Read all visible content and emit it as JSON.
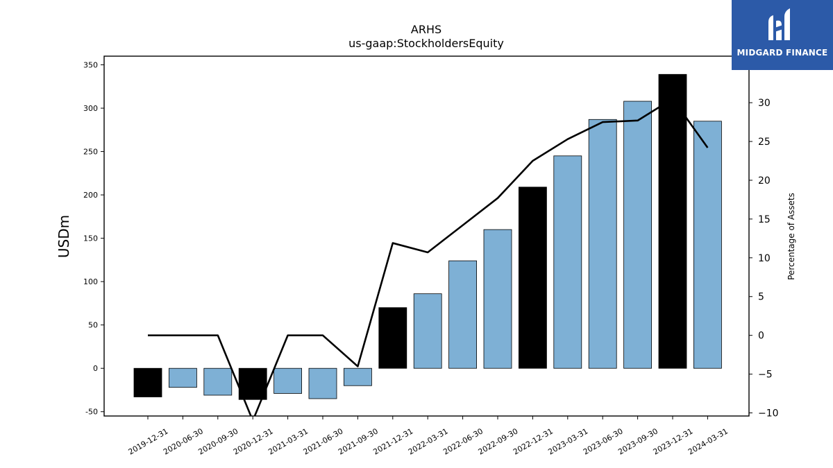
{
  "chart_data": {
    "type": "bar",
    "title": "ARHS",
    "subtitle": "us-gaap:StockholdersEquity",
    "ylabel": "USDm",
    "y2label": "Percentage of Assets",
    "ylim": [
      -55,
      360
    ],
    "y2lim": [
      -10.4,
      36.0
    ],
    "yticks": [
      -50,
      0,
      50,
      100,
      150,
      200,
      250,
      300,
      350
    ],
    "y2ticks": [
      -10,
      -5,
      0,
      5,
      10,
      15,
      20,
      25,
      30
    ],
    "categories": [
      "2019-12-31",
      "2020-06-30",
      "2020-09-30",
      "2020-12-31",
      "2021-03-31",
      "2021-06-30",
      "2021-09-30",
      "2021-12-31",
      "2022-03-31",
      "2022-06-30",
      "2022-09-30",
      "2022-12-31",
      "2023-03-31",
      "2023-06-30",
      "2023-09-30",
      "2023-12-31",
      "2024-03-31"
    ],
    "series": [
      {
        "type": "bar",
        "axis": "left",
        "values": [
          -33,
          -22,
          -31,
          -36,
          -29,
          -35,
          -20,
          70,
          86,
          124,
          160,
          209,
          245,
          287,
          308,
          339,
          285
        ]
      },
      {
        "type": "line",
        "axis": "right",
        "values": [
          0,
          0,
          0,
          -11,
          0,
          0,
          -4,
          11.9,
          10.7,
          14.2,
          17.7,
          22.5,
          25.3,
          27.5,
          27.7,
          30.5,
          24.2
        ]
      }
    ],
    "bar_colors": [
      "#000000",
      "#7eb0d5",
      "#7eb0d5",
      "#000000",
      "#7eb0d5",
      "#7eb0d5",
      "#7eb0d5",
      "#000000",
      "#7eb0d5",
      "#7eb0d5",
      "#7eb0d5",
      "#000000",
      "#7eb0d5",
      "#7eb0d5",
      "#7eb0d5",
      "#000000",
      "#7eb0d5"
    ],
    "line_color": "#000000",
    "grid": false
  },
  "logo": {
    "text": "MIDGARD FINANCE",
    "color": "#2c5aa8"
  }
}
